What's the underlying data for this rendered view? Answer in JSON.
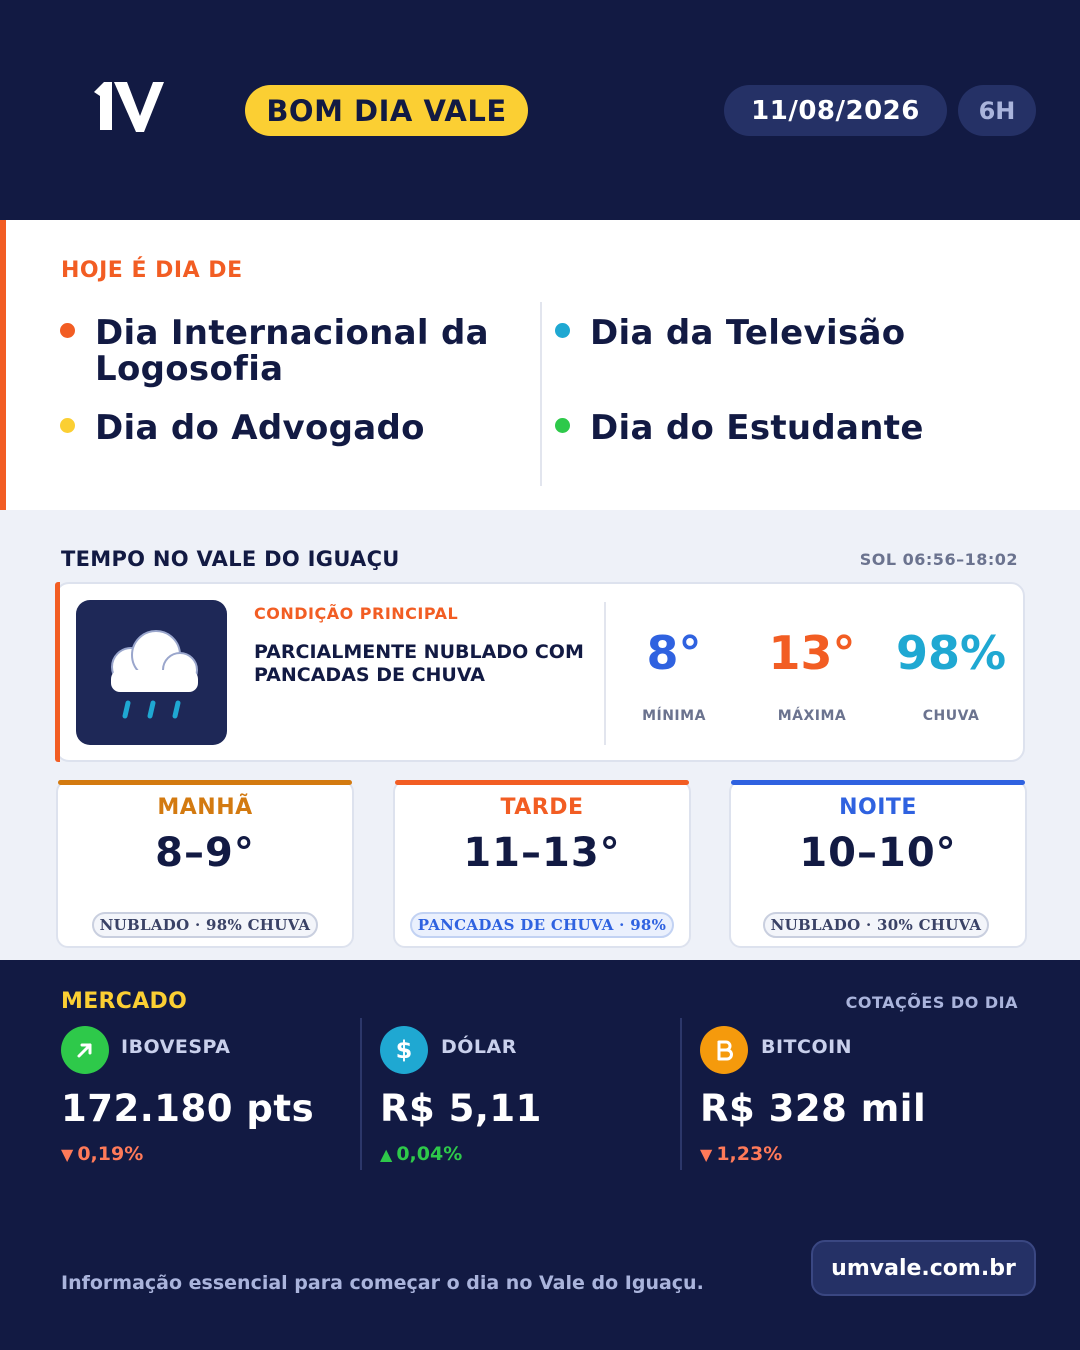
{
  "header": {
    "logo_text": "1V",
    "badge": "BOM DIA VALE",
    "date": "11/08/2026",
    "edition": "6H"
  },
  "days": {
    "heading": "HOJE É DIA DE",
    "items": [
      {
        "label": "Dia Internacional da Logosofia",
        "color": "#f25d23"
      },
      {
        "label": "Dia do Advogado",
        "color": "#fbcf33"
      },
      {
        "label": "Dia da Televisão",
        "color": "#1fa8d2"
      },
      {
        "label": "Dia do Estudante",
        "color": "#2ec94a"
      }
    ]
  },
  "weather": {
    "title": "TEMPO NO VALE DO IGUAÇU",
    "sun": "SOL 06:56–18:02",
    "icon": "rain-cloud-icon",
    "condition_label": "CONDIÇÃO PRINCIPAL",
    "condition": "PARCIALMENTE NUBLADO COM PANCADAS DE CHUVA",
    "stats": [
      {
        "value": "8°",
        "label": "MÍNIMA",
        "color": "#2f62e0"
      },
      {
        "value": "13°",
        "label": "MÁXIMA",
        "color": "#f25d23"
      },
      {
        "value": "98%",
        "label": "CHUVA",
        "color": "#1fa8d2"
      }
    ],
    "periods": [
      {
        "name": "MANHÃ",
        "temp": "8–9°",
        "summary": "NUBLADO · 98% CHUVA",
        "color": "#d37a10"
      },
      {
        "name": "TARDE",
        "temp": "11–13°",
        "summary": "PANCADAS DE CHUVA · 98%",
        "color": "#f25d23"
      },
      {
        "name": "NOITE",
        "temp": "10–10°",
        "summary": "NUBLADO · 30% CHUVA",
        "color": "#2f62e0"
      }
    ]
  },
  "market": {
    "title": "MERCADO",
    "subtitle": "COTAÇÕES DO DIA",
    "items": [
      {
        "name": "IBOVESPA",
        "value": "172.180 pts",
        "change": "0,19%",
        "direction": "down",
        "icon": "trend-up-icon",
        "icon_color": "#2ec94a"
      },
      {
        "name": "DÓLAR",
        "value": "R$ 5,11",
        "change": "0,04%",
        "direction": "up",
        "icon": "dollar-icon",
        "icon_color": "#1fa8d2"
      },
      {
        "name": "BITCOIN",
        "value": "R$ 328 mil",
        "change": "1,23%",
        "direction": "down",
        "icon": "bitcoin-icon",
        "icon_color": "#f59a0c"
      }
    ]
  },
  "footer": {
    "tagline": "Informação essencial para começar o dia no Vale do Iguaçu.",
    "site": "umvale.com.br"
  },
  "colors": {
    "navy": "#121a43",
    "accent_orange": "#f25d23",
    "accent_yellow": "#fbcf33",
    "down": "#ff7a59",
    "up": "#2ec94a"
  }
}
